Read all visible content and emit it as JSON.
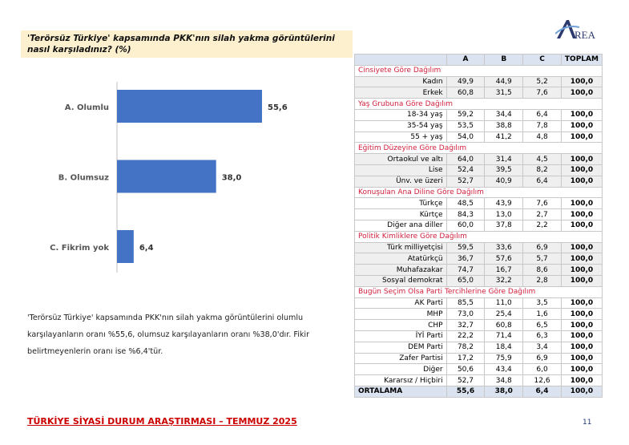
{
  "question": "'Terörsüz Türkiye' kapsamında PKK'nın silah yakma görüntülerini nasıl karşıladınız? (%)",
  "chart_data": {
    "type": "bar",
    "orientation": "horizontal",
    "categories": [
      "A. Olumlu",
      "B. Olumsuz",
      "C. Fikrim yok"
    ],
    "values": [
      55.6,
      38.0,
      6.4
    ],
    "value_labels": [
      "55,6",
      "38,0",
      "6,4"
    ],
    "color": "#4472c4"
  },
  "description": "'Terörsüz Türkiye' kapsamında PKK'nın silah yakma görüntülerini olumlu karşılayanların oranı %55,6, olumsuz karşılayanların oranı %38,0'dır. Fikir belirtmeyenlerin oranı ise %6,4'tür.",
  "table": {
    "headers": [
      "",
      "A",
      "B",
      "C",
      "TOPLAM"
    ],
    "sections": [
      {
        "title": "Cinsiyete Göre Dağılım",
        "shaded": true,
        "rows": [
          [
            "Kadın",
            "49,9",
            "44,9",
            "5,2",
            "100,0"
          ],
          [
            "Erkek",
            "60,8",
            "31,5",
            "7,6",
            "100,0"
          ]
        ]
      },
      {
        "title": "Yaş Grubuna Göre Dağılım",
        "shaded": false,
        "rows": [
          [
            "18-34 yaş",
            "59,2",
            "34,4",
            "6,4",
            "100,0"
          ],
          [
            "35-54 yaş",
            "53,5",
            "38,8",
            "7,8",
            "100,0"
          ],
          [
            "55 + yaş",
            "54,0",
            "41,2",
            "4,8",
            "100,0"
          ]
        ]
      },
      {
        "title": "Eğitim Düzeyine Göre Dağılım",
        "shaded": true,
        "rows": [
          [
            "Ortaokul ve altı",
            "64,0",
            "31,4",
            "4,5",
            "100,0"
          ],
          [
            "Lise",
            "52,4",
            "39,5",
            "8,2",
            "100,0"
          ],
          [
            "Ünv. ve üzeri",
            "52,7",
            "40,9",
            "6,4",
            "100,0"
          ]
        ]
      },
      {
        "title": "Konuşulan Ana Diline Göre Dağılım",
        "shaded": false,
        "rows": [
          [
            "Türkçe",
            "48,5",
            "43,9",
            "7,6",
            "100,0"
          ],
          [
            "Kürtçe",
            "84,3",
            "13,0",
            "2,7",
            "100,0"
          ],
          [
            "Diğer ana diller",
            "60,0",
            "37,8",
            "2,2",
            "100,0"
          ]
        ]
      },
      {
        "title": "Politik Kimliklere Göre Dağılım",
        "shaded": true,
        "rows": [
          [
            "Türk milliyetçisi",
            "59,5",
            "33,6",
            "6,9",
            "100,0"
          ],
          [
            "Atatürkçü",
            "36,7",
            "57,6",
            "5,7",
            "100,0"
          ],
          [
            "Muhafazakar",
            "74,7",
            "16,7",
            "8,6",
            "100,0"
          ],
          [
            "Sosyal demokrat",
            "65,0",
            "32,2",
            "2,8",
            "100,0"
          ]
        ]
      },
      {
        "title": "Bugün Seçim Olsa Parti Tercihlerine Göre Dağılım",
        "shaded": false,
        "rows": [
          [
            "AK Parti",
            "85,5",
            "11,0",
            "3,5",
            "100,0"
          ],
          [
            "MHP",
            "73,0",
            "25,4",
            "1,6",
            "100,0"
          ],
          [
            "CHP",
            "32,7",
            "60,8",
            "6,5",
            "100,0"
          ],
          [
            "İYİ Parti",
            "22,2",
            "71,4",
            "6,3",
            "100,0"
          ],
          [
            "DEM Parti",
            "78,2",
            "18,4",
            "3,4",
            "100,0"
          ],
          [
            "Zafer Partisi",
            "17,2",
            "75,9",
            "6,9",
            "100,0"
          ],
          [
            "Diğer",
            "50,6",
            "43,4",
            "6,0",
            "100,0"
          ],
          [
            "Kararsız / Hiçbiri",
            "52,7",
            "34,8",
            "12,6",
            "100,0"
          ]
        ]
      }
    ],
    "average": [
      "ORTALAMA",
      "55,6",
      "38,0",
      "6,4",
      "100,0"
    ]
  },
  "footer": "TÜRKİYE SİYASİ DURUM ARAŞTIRMASI – TEMMUZ 2025",
  "page_number": "11",
  "logo_text": "AREA"
}
